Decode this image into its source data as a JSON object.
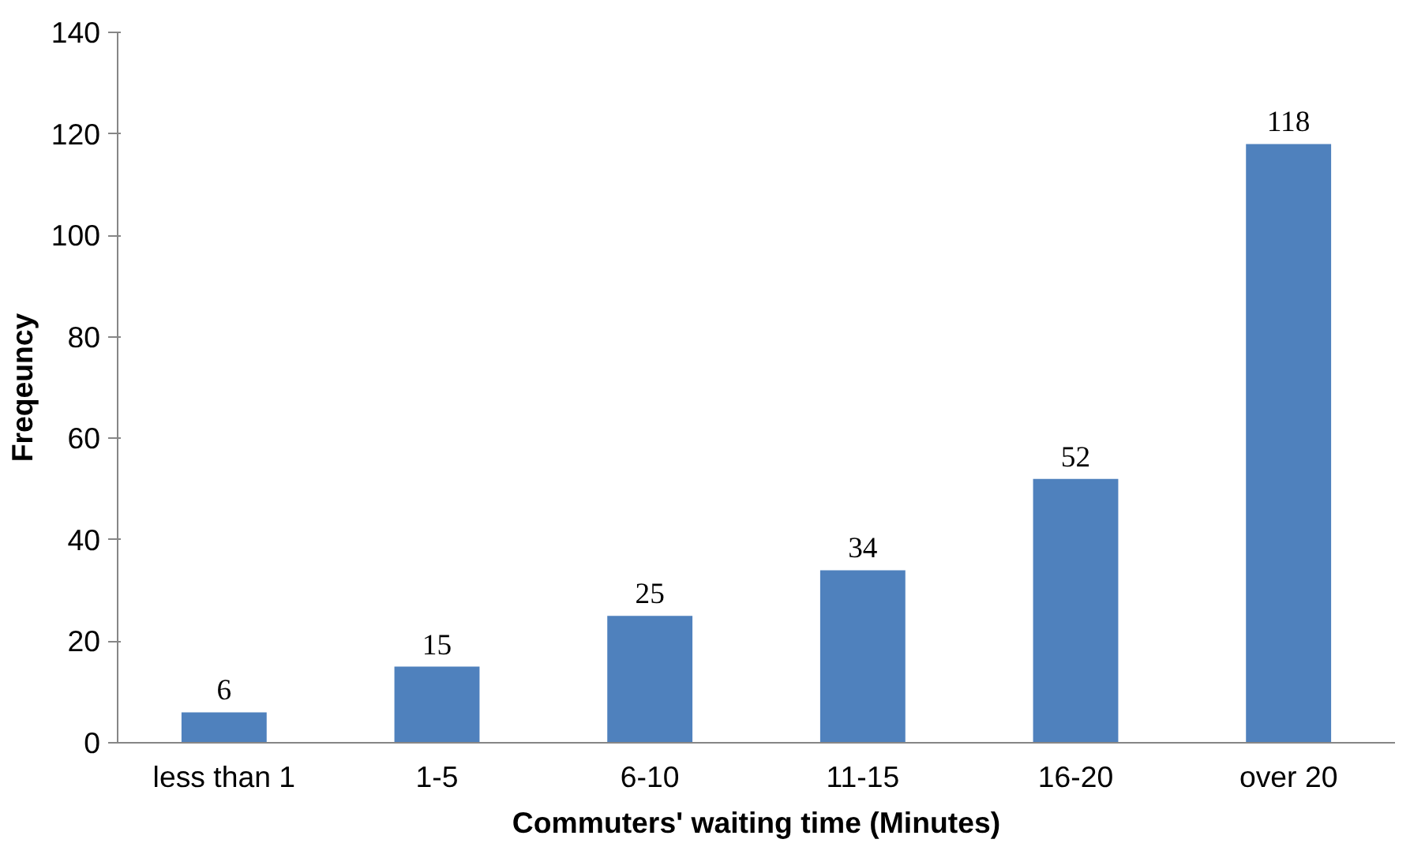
{
  "chart_data": {
    "type": "bar",
    "xlabel": "Commuters' waiting time (Minutes)",
    "ylabel": "Freqeuncy",
    "categories": [
      "less than 1",
      "1-5",
      "6-10",
      "11-15",
      "16-20",
      "over 20"
    ],
    "values": [
      6,
      15,
      25,
      34,
      52,
      118
    ],
    "color": "#4f81bd",
    "ylim": [
      0,
      140
    ],
    "yticks": [
      0,
      20,
      40,
      60,
      80,
      100,
      120,
      140
    ],
    "grid": false,
    "data_labels": true
  }
}
